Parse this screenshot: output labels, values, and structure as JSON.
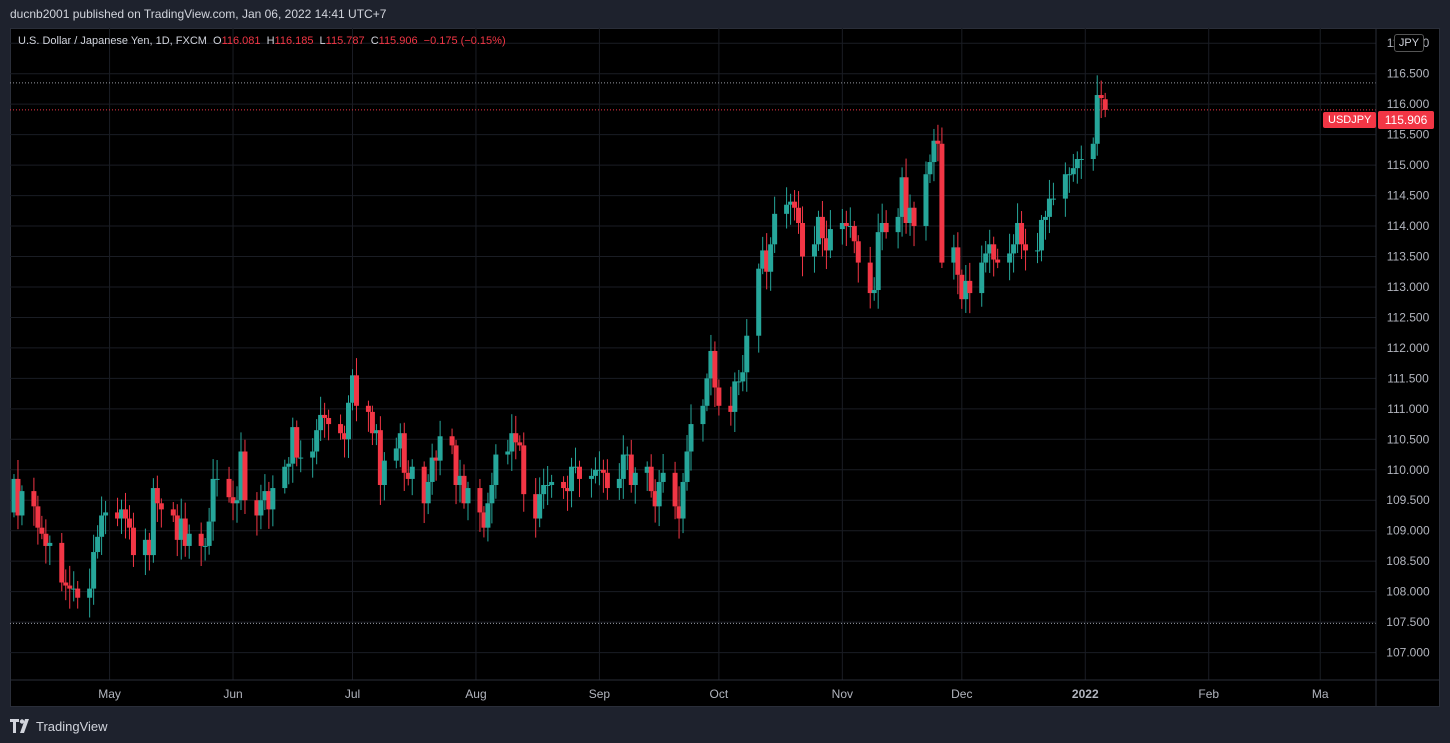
{
  "header": {
    "published": "ducnb2001 published on TradingView.com, Jan 06, 2022 14:41 UTC+7"
  },
  "legend": {
    "symbol": "U.S. Dollar / Japanese Yen, 1D, FXCM",
    "o_label": "O",
    "o": "116.081",
    "h_label": "H",
    "h": "116.185",
    "l_label": "L",
    "l": "115.787",
    "c_label": "C",
    "c": "115.906",
    "change": "−0.175 (−0.15%)"
  },
  "currency_badge": "JPY",
  "last_price": {
    "symbol": "USDJPY",
    "price": "115.906"
  },
  "footer": {
    "brand": "TradingView"
  },
  "colors": {
    "up": "#26a69a",
    "down": "#f23645",
    "background": "#000000",
    "grid": "#1a1d24"
  },
  "chart_data": {
    "type": "candlestick",
    "symbol": "USDJPY",
    "interval": "1D",
    "y_ticks": [
      107.0,
      107.5,
      108.0,
      108.5,
      109.0,
      109.5,
      110.0,
      110.5,
      111.0,
      111.5,
      112.0,
      112.5,
      113.0,
      113.5,
      114.0,
      114.5,
      115.0,
      115.5,
      116.0,
      116.5,
      117.0
    ],
    "ylim": [
      106.55,
      117.25
    ],
    "x_range": [
      "2021-04-07",
      "2022-03-15"
    ],
    "x_ticks": [
      {
        "label": "May",
        "date": "2021-05-01"
      },
      {
        "label": "Jun",
        "date": "2021-06-01"
      },
      {
        "label": "Jul",
        "date": "2021-07-01"
      },
      {
        "label": "Aug",
        "date": "2021-08-01"
      },
      {
        "label": "Sep",
        "date": "2021-09-01"
      },
      {
        "label": "Oct",
        "date": "2021-10-01"
      },
      {
        "label": "Nov",
        "date": "2021-11-01"
      },
      {
        "label": "Dec",
        "date": "2021-12-01"
      },
      {
        "label": "2022",
        "date": "2022-01-01"
      },
      {
        "label": "Feb",
        "date": "2022-02-01"
      },
      {
        "label": "Ma",
        "date": "2022-03-01"
      }
    ],
    "horizontal_lines": [
      {
        "value": 116.35,
        "style": "dotted",
        "color": "#9598a1"
      },
      {
        "value": 115.906,
        "style": "dotted",
        "color": "#f23645"
      },
      {
        "value": 107.48,
        "style": "dotted",
        "color": "#9598a1"
      }
    ],
    "candles": [
      {
        "date": "2021-04-07",
        "c": 109.85
      },
      {
        "date": "2021-04-08",
        "c": 109.25
      },
      {
        "date": "2021-04-09",
        "c": 109.65
      },
      {
        "date": "2021-04-12",
        "c": 109.4
      },
      {
        "date": "2021-04-13",
        "c": 109.05
      },
      {
        "date": "2021-04-14",
        "c": 108.95
      },
      {
        "date": "2021-04-15",
        "c": 108.75
      },
      {
        "date": "2021-04-16",
        "c": 108.8
      },
      {
        "date": "2021-04-19",
        "c": 108.15
      },
      {
        "date": "2021-04-20",
        "c": 108.1
      },
      {
        "date": "2021-04-21",
        "c": 108.05
      },
      {
        "date": "2021-04-22",
        "c": 108.05
      },
      {
        "date": "2021-04-23",
        "c": 107.9
      },
      {
        "date": "2021-04-26",
        "c": 108.05
      },
      {
        "date": "2021-04-27",
        "c": 108.65
      },
      {
        "date": "2021-04-28",
        "c": 108.9
      },
      {
        "date": "2021-04-29",
        "c": 109.25
      },
      {
        "date": "2021-04-30",
        "c": 109.3
      },
      {
        "date": "2021-05-03",
        "c": 109.2
      },
      {
        "date": "2021-05-04",
        "c": 109.35
      },
      {
        "date": "2021-05-05",
        "c": 109.2
      },
      {
        "date": "2021-05-06",
        "c": 109.05
      },
      {
        "date": "2021-05-07",
        "c": 108.6
      },
      {
        "date": "2021-05-10",
        "c": 108.85
      },
      {
        "date": "2021-05-11",
        "c": 108.6
      },
      {
        "date": "2021-05-12",
        "c": 109.7
      },
      {
        "date": "2021-05-13",
        "c": 109.45
      },
      {
        "date": "2021-05-14",
        "c": 109.35
      },
      {
        "date": "2021-05-17",
        "c": 109.25
      },
      {
        "date": "2021-05-18",
        "c": 108.85
      },
      {
        "date": "2021-05-19",
        "c": 109.2
      },
      {
        "date": "2021-05-20",
        "c": 108.75
      },
      {
        "date": "2021-05-21",
        "c": 108.95
      },
      {
        "date": "2021-05-24",
        "c": 108.75
      },
      {
        "date": "2021-05-25",
        "c": 108.75
      },
      {
        "date": "2021-05-26",
        "c": 109.15
      },
      {
        "date": "2021-05-27",
        "c": 109.85
      },
      {
        "date": "2021-05-28",
        "c": 109.85
      },
      {
        "date": "2021-05-31",
        "c": 109.55
      },
      {
        "date": "2021-06-01",
        "c": 109.45
      },
      {
        "date": "2021-06-02",
        "c": 109.5
      },
      {
        "date": "2021-06-03",
        "c": 110.3
      },
      {
        "date": "2021-06-04",
        "c": 109.5
      },
      {
        "date": "2021-06-07",
        "c": 109.25
      },
      {
        "date": "2021-06-08",
        "c": 109.5
      },
      {
        "date": "2021-06-09",
        "c": 109.65
      },
      {
        "date": "2021-06-10",
        "c": 109.35
      },
      {
        "date": "2021-06-11",
        "c": 109.7
      },
      {
        "date": "2021-06-14",
        "c": 110.05
      },
      {
        "date": "2021-06-15",
        "c": 110.1
      },
      {
        "date": "2021-06-16",
        "c": 110.7
      },
      {
        "date": "2021-06-17",
        "c": 110.2
      },
      {
        "date": "2021-06-18",
        "c": 110.2
      },
      {
        "date": "2021-06-21",
        "c": 110.3
      },
      {
        "date": "2021-06-22",
        "c": 110.65
      },
      {
        "date": "2021-06-23",
        "c": 110.9
      },
      {
        "date": "2021-06-24",
        "c": 110.85
      },
      {
        "date": "2021-06-25",
        "c": 110.75
      },
      {
        "date": "2021-06-28",
        "c": 110.6
      },
      {
        "date": "2021-06-29",
        "c": 110.5
      },
      {
        "date": "2021-06-30",
        "c": 111.1
      },
      {
        "date": "2021-07-01",
        "c": 111.55
      },
      {
        "date": "2021-07-02",
        "c": 111.05
      },
      {
        "date": "2021-07-05",
        "c": 110.95
      },
      {
        "date": "2021-07-06",
        "c": 110.6
      },
      {
        "date": "2021-07-07",
        "c": 110.65
      },
      {
        "date": "2021-07-08",
        "c": 109.75
      },
      {
        "date": "2021-07-09",
        "c": 110.15
      },
      {
        "date": "2021-07-12",
        "c": 110.35
      },
      {
        "date": "2021-07-13",
        "c": 110.6
      },
      {
        "date": "2021-07-14",
        "c": 109.95
      },
      {
        "date": "2021-07-15",
        "c": 109.85
      },
      {
        "date": "2021-07-16",
        "c": 110.05
      },
      {
        "date": "2021-07-19",
        "c": 109.45
      },
      {
        "date": "2021-07-20",
        "c": 109.8
      },
      {
        "date": "2021-07-21",
        "c": 110.2
      },
      {
        "date": "2021-07-22",
        "c": 110.15
      },
      {
        "date": "2021-07-23",
        "c": 110.55
      },
      {
        "date": "2021-07-26",
        "c": 110.4
      },
      {
        "date": "2021-07-27",
        "c": 109.75
      },
      {
        "date": "2021-07-28",
        "c": 109.9
      },
      {
        "date": "2021-07-29",
        "c": 109.45
      },
      {
        "date": "2021-07-30",
        "c": 109.7
      },
      {
        "date": "2021-08-02",
        "c": 109.3
      },
      {
        "date": "2021-08-03",
        "c": 109.05
      },
      {
        "date": "2021-08-04",
        "c": 109.45
      },
      {
        "date": "2021-08-05",
        "c": 109.75
      },
      {
        "date": "2021-08-06",
        "c": 110.25
      },
      {
        "date": "2021-08-09",
        "c": 110.3
      },
      {
        "date": "2021-08-10",
        "c": 110.6
      },
      {
        "date": "2021-08-11",
        "c": 110.45
      },
      {
        "date": "2021-08-12",
        "c": 110.4
      },
      {
        "date": "2021-08-13",
        "c": 109.6
      },
      {
        "date": "2021-08-16",
        "c": 109.2
      },
      {
        "date": "2021-08-17",
        "c": 109.6
      },
      {
        "date": "2021-08-18",
        "c": 109.75
      },
      {
        "date": "2021-08-19",
        "c": 109.75
      },
      {
        "date": "2021-08-20",
        "c": 109.8
      },
      {
        "date": "2021-08-23",
        "c": 109.7
      },
      {
        "date": "2021-08-24",
        "c": 109.65
      },
      {
        "date": "2021-08-25",
        "c": 110.05
      },
      {
        "date": "2021-08-26",
        "c": 110.05
      },
      {
        "date": "2021-08-27",
        "c": 109.85
      },
      {
        "date": "2021-08-30",
        "c": 109.9
      },
      {
        "date": "2021-08-31",
        "c": 110.0
      },
      {
        "date": "2021-09-01",
        "c": 110.0
      },
      {
        "date": "2021-09-02",
        "c": 109.95
      },
      {
        "date": "2021-09-03",
        "c": 109.7
      },
      {
        "date": "2021-09-06",
        "c": 109.85
      },
      {
        "date": "2021-09-07",
        "c": 110.25
      },
      {
        "date": "2021-09-08",
        "c": 110.25
      },
      {
        "date": "2021-09-09",
        "c": 109.75
      },
      {
        "date": "2021-09-10",
        "c": 109.95
      },
      {
        "date": "2021-09-13",
        "c": 110.05
      },
      {
        "date": "2021-09-14",
        "c": 109.65
      },
      {
        "date": "2021-09-15",
        "c": 109.4
      },
      {
        "date": "2021-09-16",
        "c": 109.8
      },
      {
        "date": "2021-09-17",
        "c": 109.95
      },
      {
        "date": "2021-09-20",
        "c": 109.4
      },
      {
        "date": "2021-09-21",
        "c": 109.2
      },
      {
        "date": "2021-09-22",
        "c": 109.8
      },
      {
        "date": "2021-09-23",
        "c": 110.3
      },
      {
        "date": "2021-09-24",
        "c": 110.75
      },
      {
        "date": "2021-09-27",
        "c": 111.05
      },
      {
        "date": "2021-09-28",
        "c": 111.5
      },
      {
        "date": "2021-09-29",
        "c": 111.95
      },
      {
        "date": "2021-09-30",
        "c": 111.35
      },
      {
        "date": "2021-10-01",
        "c": 111.05
      },
      {
        "date": "2021-10-04",
        "c": 110.95
      },
      {
        "date": "2021-10-05",
        "c": 111.45
      },
      {
        "date": "2021-10-06",
        "c": 111.45
      },
      {
        "date": "2021-10-07",
        "c": 111.6
      },
      {
        "date": "2021-10-08",
        "c": 112.2
      },
      {
        "date": "2021-10-11",
        "c": 113.3
      },
      {
        "date": "2021-10-12",
        "c": 113.6
      },
      {
        "date": "2021-10-13",
        "c": 113.25
      },
      {
        "date": "2021-10-14",
        "c": 113.7
      },
      {
        "date": "2021-10-15",
        "c": 114.2
      },
      {
        "date": "2021-10-18",
        "c": 114.35
      },
      {
        "date": "2021-10-19",
        "c": 114.4
      },
      {
        "date": "2021-10-20",
        "c": 114.3
      },
      {
        "date": "2021-10-21",
        "c": 114.05
      },
      {
        "date": "2021-10-22",
        "c": 113.5
      },
      {
        "date": "2021-10-25",
        "c": 113.7
      },
      {
        "date": "2021-10-26",
        "c": 114.15
      },
      {
        "date": "2021-10-27",
        "c": 113.8
      },
      {
        "date": "2021-10-28",
        "c": 113.6
      },
      {
        "date": "2021-10-29",
        "c": 113.95
      },
      {
        "date": "2021-11-01",
        "c": 114.05
      },
      {
        "date": "2021-11-02",
        "c": 114.0
      },
      {
        "date": "2021-11-03",
        "c": 114.0
      },
      {
        "date": "2021-11-04",
        "c": 113.75
      },
      {
        "date": "2021-11-05",
        "c": 113.4
      },
      {
        "date": "2021-11-08",
        "c": 112.9
      },
      {
        "date": "2021-11-09",
        "c": 112.95
      },
      {
        "date": "2021-11-10",
        "c": 113.9
      },
      {
        "date": "2021-11-11",
        "c": 114.05
      },
      {
        "date": "2021-11-12",
        "c": 113.9
      },
      {
        "date": "2021-11-15",
        "c": 114.15
      },
      {
        "date": "2021-11-16",
        "c": 114.8
      },
      {
        "date": "2021-11-17",
        "c": 114.05
      },
      {
        "date": "2021-11-18",
        "c": 114.3
      },
      {
        "date": "2021-11-19",
        "c": 114.0
      },
      {
        "date": "2021-11-22",
        "c": 114.85
      },
      {
        "date": "2021-11-23",
        "c": 115.05
      },
      {
        "date": "2021-11-24",
        "c": 115.4
      },
      {
        "date": "2021-11-25",
        "c": 115.35
      },
      {
        "date": "2021-11-26",
        "c": 113.4
      },
      {
        "date": "2021-11-29",
        "c": 113.65
      },
      {
        "date": "2021-11-30",
        "c": 113.2
      },
      {
        "date": "2021-12-01",
        "c": 112.8
      },
      {
        "date": "2021-12-02",
        "c": 113.1
      },
      {
        "date": "2021-12-03",
        "c": 112.9
      },
      {
        "date": "2021-12-06",
        "c": 113.4
      },
      {
        "date": "2021-12-07",
        "c": 113.55
      },
      {
        "date": "2021-12-08",
        "c": 113.7
      },
      {
        "date": "2021-12-09",
        "c": 113.45
      },
      {
        "date": "2021-12-10",
        "c": 113.4
      },
      {
        "date": "2021-12-13",
        "c": 113.55
      },
      {
        "date": "2021-12-14",
        "c": 113.7
      },
      {
        "date": "2021-12-15",
        "c": 114.05
      },
      {
        "date": "2021-12-16",
        "c": 113.7
      },
      {
        "date": "2021-12-17",
        "c": 113.6
      },
      {
        "date": "2021-12-20",
        "c": 113.6
      },
      {
        "date": "2021-12-21",
        "c": 114.1
      },
      {
        "date": "2021-12-22",
        "c": 114.15
      },
      {
        "date": "2021-12-23",
        "c": 114.45
      },
      {
        "date": "2021-12-24",
        "c": 114.45
      },
      {
        "date": "2021-12-27",
        "c": 114.85
      },
      {
        "date": "2021-12-28",
        "c": 114.85
      },
      {
        "date": "2021-12-29",
        "c": 114.95
      },
      {
        "date": "2021-12-30",
        "c": 115.1
      },
      {
        "date": "2021-12-31",
        "c": 115.1
      },
      {
        "date": "2022-01-03",
        "c": 115.35
      },
      {
        "date": "2022-01-04",
        "c": 116.15
      },
      {
        "date": "2022-01-05",
        "c": 116.1
      },
      {
        "date": "2022-01-06",
        "o": 116.081,
        "h": 116.185,
        "l": 115.787,
        "c": 115.906
      }
    ],
    "initial_open": 109.3
  }
}
